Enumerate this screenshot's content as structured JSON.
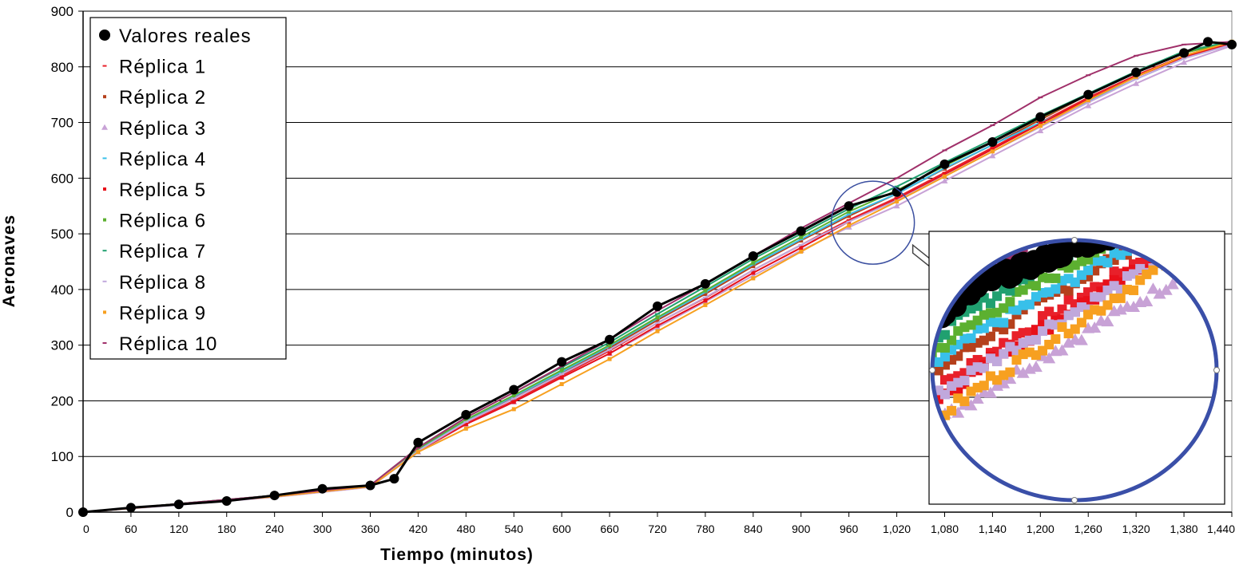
{
  "chart_data": {
    "type": "scatter",
    "title": "",
    "xlabel": "Tiempo (minutos)",
    "ylabel": "Aeronaves",
    "xlim": [
      0,
      1440
    ],
    "ylim": [
      0,
      900
    ],
    "xticks": [
      0,
      60,
      120,
      180,
      240,
      300,
      360,
      420,
      480,
      540,
      600,
      660,
      720,
      780,
      840,
      900,
      960,
      1020,
      1080,
      1140,
      1200,
      1260,
      1320,
      1380,
      1440
    ],
    "xtick_labels": [
      "0",
      "60",
      "120",
      "180",
      "240",
      "300",
      "360",
      "420",
      "480",
      "540",
      "600",
      "660",
      "720",
      "780",
      "840",
      "900",
      "960",
      "1,020",
      "1,080",
      "1,140",
      "1,200",
      "1,260",
      "1,320",
      "1,380",
      "1,440"
    ],
    "yticks": [
      0,
      100,
      200,
      300,
      400,
      500,
      600,
      700,
      800,
      900
    ],
    "ytick_labels": [
      "0",
      "100",
      "200",
      "300",
      "400",
      "500",
      "600",
      "700",
      "800",
      "900"
    ],
    "grid": "horizontal",
    "legend_position": "top-left",
    "series": [
      {
        "name": "Valores reales",
        "color": "#000000",
        "marker": "circle",
        "x": [
          0,
          60,
          120,
          180,
          240,
          300,
          360,
          390,
          420,
          480,
          540,
          600,
          660,
          720,
          780,
          840,
          900,
          960,
          1020,
          1080,
          1140,
          1200,
          1260,
          1320,
          1380,
          1410,
          1440
        ],
        "y": [
          0,
          8,
          14,
          20,
          30,
          42,
          48,
          60,
          125,
          175,
          220,
          270,
          310,
          370,
          410,
          460,
          505,
          550,
          575,
          625,
          665,
          710,
          750,
          790,
          825,
          845,
          840
        ]
      },
      {
        "name": "Réplica 1",
        "color": "#e8202a",
        "marker": "dash",
        "x": [
          0,
          120,
          240,
          360,
          420,
          480,
          540,
          600,
          660,
          720,
          780,
          840,
          900,
          960,
          1020,
          1080,
          1140,
          1200,
          1260,
          1320,
          1380,
          1440
        ],
        "y": [
          0,
          14,
          28,
          46,
          110,
          160,
          200,
          245,
          290,
          340,
          385,
          435,
          480,
          525,
          565,
          610,
          655,
          700,
          745,
          785,
          820,
          845
        ]
      },
      {
        "name": "Réplica 2",
        "color": "#b5401c",
        "marker": "square",
        "x": [
          0,
          120,
          240,
          360,
          420,
          480,
          540,
          600,
          660,
          720,
          780,
          840,
          900,
          960,
          1020,
          1080,
          1140,
          1200,
          1260,
          1320,
          1380,
          1440
        ],
        "y": [
          0,
          15,
          29,
          47,
          112,
          163,
          205,
          250,
          295,
          345,
          392,
          442,
          488,
          532,
          572,
          617,
          660,
          705,
          750,
          790,
          825,
          845
        ]
      },
      {
        "name": "Réplica 3",
        "color": "#c8a2d6",
        "marker": "triangle",
        "x": [
          0,
          120,
          240,
          360,
          420,
          480,
          540,
          600,
          660,
          720,
          780,
          840,
          900,
          960,
          1020,
          1080,
          1140,
          1200,
          1260,
          1320,
          1380,
          1440
        ],
        "y": [
          0,
          13,
          27,
          45,
          108,
          158,
          198,
          242,
          285,
          332,
          378,
          425,
          470,
          512,
          550,
          595,
          640,
          685,
          730,
          770,
          808,
          838
        ]
      },
      {
        "name": "Réplica 4",
        "color": "#38c0ea",
        "marker": "dash",
        "x": [
          0,
          120,
          240,
          360,
          420,
          480,
          540,
          600,
          660,
          720,
          780,
          840,
          900,
          960,
          1020,
          1080,
          1140,
          1200,
          1260,
          1320,
          1380,
          1440
        ],
        "y": [
          0,
          14,
          29,
          47,
          112,
          165,
          208,
          252,
          298,
          348,
          395,
          445,
          490,
          535,
          572,
          618,
          660,
          700,
          738,
          778,
          815,
          845
        ]
      },
      {
        "name": "Réplica 5",
        "color": "#e8101a",
        "marker": "square",
        "x": [
          0,
          120,
          240,
          360,
          420,
          480,
          540,
          600,
          660,
          720,
          780,
          840,
          900,
          960,
          1020,
          1080,
          1140,
          1200,
          1260,
          1320,
          1380,
          1440
        ],
        "y": [
          0,
          14,
          28,
          46,
          110,
          158,
          198,
          242,
          285,
          335,
          380,
          430,
          475,
          522,
          562,
          607,
          652,
          698,
          742,
          782,
          818,
          842
        ]
      },
      {
        "name": "Réplica 6",
        "color": "#5cb030",
        "marker": "square",
        "x": [
          0,
          120,
          240,
          360,
          420,
          480,
          540,
          600,
          660,
          720,
          780,
          840,
          900,
          960,
          1020,
          1080,
          1140,
          1200,
          1260,
          1320,
          1380,
          1440
        ],
        "y": [
          0,
          15,
          30,
          48,
          114,
          166,
          210,
          255,
          300,
          350,
          398,
          448,
          494,
          540,
          578,
          622,
          665,
          708,
          750,
          790,
          825,
          845
        ]
      },
      {
        "name": "Réplica 7",
        "color": "#20a070",
        "marker": "dash",
        "x": [
          0,
          120,
          240,
          360,
          420,
          480,
          540,
          600,
          660,
          720,
          780,
          840,
          900,
          960,
          1020,
          1080,
          1140,
          1200,
          1260,
          1320,
          1380,
          1440
        ],
        "y": [
          0,
          15,
          30,
          48,
          116,
          170,
          215,
          260,
          305,
          356,
          405,
          455,
          500,
          545,
          585,
          628,
          670,
          712,
          752,
          792,
          828,
          846
        ]
      },
      {
        "name": "Réplica 8",
        "color": "#c0a8dc",
        "marker": "dash",
        "x": [
          0,
          120,
          240,
          360,
          420,
          480,
          540,
          600,
          660,
          720,
          780,
          840,
          900,
          960,
          1020,
          1080,
          1140,
          1200,
          1260,
          1320,
          1380,
          1440
        ],
        "y": [
          0,
          14,
          28,
          46,
          110,
          162,
          204,
          248,
          292,
          340,
          386,
          435,
          480,
          522,
          560,
          604,
          648,
          692,
          736,
          778,
          815,
          840
        ]
      },
      {
        "name": "Réplica 9",
        "color": "#f7a020",
        "marker": "square",
        "x": [
          0,
          120,
          240,
          360,
          420,
          480,
          540,
          600,
          660,
          720,
          780,
          840,
          900,
          960,
          1020,
          1080,
          1140,
          1200,
          1260,
          1320,
          1380,
          1440
        ],
        "y": [
          0,
          14,
          28,
          46,
          108,
          150,
          185,
          230,
          275,
          325,
          372,
          420,
          468,
          515,
          558,
          603,
          648,
          694,
          740,
          782,
          820,
          845
        ]
      },
      {
        "name": "Réplica 10",
        "color": "#a0306a",
        "marker": "dash",
        "x": [
          0,
          120,
          240,
          360,
          420,
          480,
          540,
          600,
          660,
          720,
          780,
          840,
          900,
          960,
          1020,
          1080,
          1140,
          1200,
          1260,
          1320,
          1380,
          1440
        ],
        "y": [
          0,
          15,
          30,
          48,
          116,
          170,
          215,
          262,
          310,
          362,
          410,
          460,
          510,
          555,
          600,
          650,
          695,
          745,
          785,
          820,
          840,
          845
        ]
      }
    ],
    "annotations": [
      {
        "type": "zoom-circle",
        "description_ref": "magnified region near x=960-1020, y=450-560",
        "inset_position": "bottom-right"
      }
    ]
  }
}
